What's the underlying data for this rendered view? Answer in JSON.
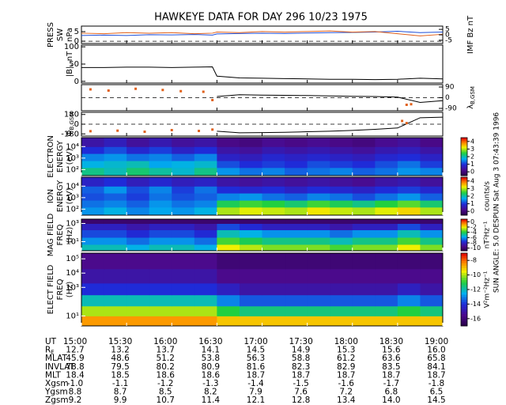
{
  "title": "HAWKEYE DATA FOR DAY 296 10/23 1975",
  "side_note": "SUN ANGLE: 5.0 DESPUN Sat Aug  3 07:43:39 1996",
  "time_axis": {
    "label": "UT",
    "xlim": [
      15,
      19
    ],
    "xticks": [
      {
        "value": 15,
        "label": "15:00"
      },
      {
        "value": 15.5,
        "label": "15:30"
      },
      {
        "value": 16,
        "label": "16:00"
      },
      {
        "value": 16.5,
        "label": "16:30"
      },
      {
        "value": 17,
        "label": "17:00"
      },
      {
        "value": 17.5,
        "label": "17:30"
      },
      {
        "value": 18,
        "label": "18:00"
      },
      {
        "value": 18.5,
        "label": "18:30"
      },
      {
        "value": 19,
        "label": "19:00"
      }
    ]
  },
  "chart_data": [
    {
      "type": "line",
      "ylabel": [
        "PRESS",
        "SW",
        "nPa"
      ],
      "y2label": [
        "IMF Bz nT"
      ],
      "dashed_zero": true,
      "ylim": [
        -1.2,
        7.9
      ],
      "yticks": [
        0,
        5
      ],
      "y2lim": [
        -8,
        8
      ],
      "y2ticks": [
        -5,
        0,
        5
      ],
      "x": [
        15,
        15.25,
        15.5,
        15.75,
        16,
        16.25,
        16.45,
        16.5,
        16.75,
        17,
        17.25,
        17.5,
        17.75,
        18,
        18.25,
        18.5,
        18.75,
        19
      ],
      "series": [
        {
          "color": "#1f4fd8",
          "values": [
            3.0,
            3.2,
            3.0,
            3.4,
            3.3,
            3.5,
            3.2,
            3.8,
            4.0,
            4.2,
            4.0,
            4.3,
            4.5,
            4.6,
            4.8,
            5.2,
            4.5,
            4.8
          ]
        },
        {
          "color": "#e0601a",
          "axis": "y2",
          "values": [
            1.5,
            1.0,
            2.0,
            1.5,
            2.0,
            1.0,
            1.5,
            2.5,
            2.0,
            3.0,
            2.5,
            3.0,
            3.5,
            2.5,
            3.0,
            1.0,
            -1.0,
            0.5
          ]
        }
      ]
    },
    {
      "type": "line",
      "ylabel": [
        "|B|, nT"
      ],
      "ylim": [
        -5,
        105
      ],
      "yticks": [
        0,
        50,
        100
      ],
      "x": [
        15,
        15.25,
        15.5,
        15.75,
        16,
        16.25,
        16.45,
        16.5,
        16.75,
        17,
        17.25,
        17.5,
        17.75,
        18,
        18.25,
        18.5,
        18.75,
        19
      ],
      "series": [
        {
          "color": "#000000",
          "values": [
            40,
            40,
            41,
            41,
            40,
            41,
            42,
            15,
            10,
            9,
            8,
            7,
            6,
            6,
            5,
            6,
            9,
            7
          ]
        }
      ]
    },
    {
      "type": "line",
      "y2label": [
        {
          "main": "λ",
          "sub": "B,GSM"
        }
      ],
      "dashed_zero": true,
      "ylim": [
        -110,
        110
      ],
      "y2lim": [
        -110,
        110
      ],
      "y2ticks": [
        -90,
        0,
        90
      ],
      "x": [
        15,
        15.25,
        15.5,
        15.75,
        16,
        16.25,
        16.45,
        16.5,
        16.75,
        17,
        17.25,
        17.5,
        17.75,
        18,
        18.25,
        18.5,
        18.75,
        19
      ],
      "series": [
        {
          "color": "#000000",
          "axis": "y2",
          "values": [
            null,
            null,
            null,
            null,
            null,
            null,
            null,
            10,
            25,
            22,
            20,
            18,
            15,
            12,
            10,
            5,
            -40,
            -25
          ]
        }
      ],
      "points": [
        {
          "color": "#e0601a",
          "x": [
            15.1,
            15.3,
            15.6,
            15.9,
            16.1,
            16.35,
            16.45,
            18.6,
            18.65
          ],
          "values": [
            70,
            60,
            75,
            65,
            55,
            50,
            -20,
            -60,
            -55
          ]
        }
      ]
    },
    {
      "type": "line",
      "ylabel": [
        {
          "main": "Φ",
          "sub": "B,GSM"
        }
      ],
      "dashed_zero": true,
      "ylim": [
        -220,
        220
      ],
      "yticks": [
        -180,
        0,
        180
      ],
      "x": [
        15,
        15.25,
        15.5,
        15.75,
        16,
        16.25,
        16.45,
        16.5,
        16.75,
        17,
        17.25,
        17.5,
        17.75,
        18,
        18.25,
        18.5,
        18.75,
        19
      ],
      "series": [
        {
          "color": "#000000",
          "values": [
            null,
            null,
            null,
            null,
            null,
            null,
            null,
            -130,
            -160,
            -155,
            -150,
            -140,
            -130,
            -115,
            -95,
            -70,
            120,
            130
          ]
        }
      ],
      "points": [
        {
          "color": "#e0601a",
          "x": [
            15.1,
            15.4,
            15.7,
            16.0,
            16.3,
            16.45,
            18.55,
            18.6
          ],
          "values": [
            -130,
            -120,
            -140,
            -110,
            -125,
            -100,
            60,
            20
          ]
        }
      ]
    },
    {
      "type": "heatmap",
      "ylabel": [
        "ELECTRON",
        "ENERGY",
        "(eV)"
      ],
      "log": true,
      "ylim": [
        30,
        60000
      ],
      "yticks": [
        {
          "value": 100,
          "label": "10²"
        },
        {
          "value": 1000,
          "label": "10³"
        },
        {
          "value": 10000,
          "label": "10⁴"
        }
      ],
      "x_bins": [
        15,
        15.25,
        15.5,
        15.75,
        16,
        16.25,
        16.5,
        16.75,
        17,
        17.25,
        17.5,
        17.75,
        18,
        18.25,
        18.5,
        18.75,
        19
      ],
      "y_bins": [
        30,
        150,
        600,
        2500,
        10000,
        60000
      ],
      "z": [
        [
          2.2,
          2.0,
          2.3,
          2.1,
          1.9,
          2.2,
          1.6,
          1.4,
          1.5,
          1.3,
          1.4,
          1.5,
          1.3,
          1.4,
          1.6,
          1.5
        ],
        [
          1.8,
          1.9,
          2.0,
          1.7,
          1.8,
          1.9,
          1.2,
          1.0,
          1.1,
          1.0,
          1.2,
          1.1,
          1.0,
          1.2,
          1.4,
          1.1
        ],
        [
          1.5,
          1.6,
          1.4,
          1.5,
          1.3,
          1.5,
          0.8,
          0.7,
          0.9,
          0.8,
          0.9,
          0.8,
          0.7,
          0.9,
          1.0,
          0.8
        ],
        [
          1.0,
          1.2,
          0.9,
          1.1,
          0.8,
          1.0,
          0.5,
          0.4,
          0.6,
          0.5,
          0.6,
          0.5,
          0.4,
          0.6,
          0.7,
          0.5
        ],
        [
          0.5,
          0.7,
          0.4,
          0.6,
          0.4,
          0.5,
          0.2,
          0.1,
          0.3,
          0.2,
          0.3,
          0.2,
          0.1,
          0.3,
          0.4,
          0.2
        ]
      ],
      "zlim": [
        -0.5,
        4.5
      ],
      "zticks": [
        0,
        1,
        2,
        3,
        4
      ]
    },
    {
      "type": "heatmap",
      "ylabel": [
        "ION",
        "ENERGY",
        "(eV)"
      ],
      "log": true,
      "colorbar_label": "counts/s",
      "ylim": [
        30,
        60000
      ],
      "yticks": [
        {
          "value": 100,
          "label": "10²"
        },
        {
          "value": 1000,
          "label": "10³"
        },
        {
          "value": 10000,
          "label": "10⁴"
        }
      ],
      "x_bins": [
        15,
        15.25,
        15.5,
        15.75,
        16,
        16.25,
        16.5,
        16.75,
        17,
        17.25,
        17.5,
        17.75,
        18,
        18.25,
        18.5,
        18.75,
        19
      ],
      "y_bins": [
        30,
        150,
        600,
        2500,
        10000,
        60000
      ],
      "z": [
        [
          1.6,
          1.8,
          1.5,
          1.7,
          1.6,
          1.8,
          3.0,
          3.2,
          3.1,
          3.0,
          3.3,
          3.1,
          3.0,
          3.2,
          3.4,
          3.0
        ],
        [
          1.4,
          1.5,
          1.3,
          1.6,
          1.4,
          1.5,
          2.4,
          2.6,
          2.5,
          2.3,
          2.6,
          2.4,
          2.2,
          2.5,
          2.7,
          2.3
        ],
        [
          1.2,
          1.3,
          1.1,
          1.4,
          1.2,
          1.3,
          1.5,
          1.6,
          1.4,
          1.3,
          1.5,
          1.4,
          1.2,
          1.4,
          1.6,
          1.3
        ],
        [
          1.3,
          1.6,
          1.2,
          1.5,
          1.1,
          1.4,
          1.0,
          0.9,
          1.0,
          0.8,
          1.0,
          0.9,
          0.8,
          1.0,
          1.1,
          0.9
        ],
        [
          0.8,
          1.0,
          0.7,
          0.9,
          0.7,
          0.8,
          0.5,
          0.4,
          0.5,
          0.4,
          0.5,
          0.4,
          0.3,
          0.5,
          0.6,
          0.4
        ]
      ],
      "zlim": [
        -0.5,
        4.5
      ],
      "zticks": [
        0,
        1,
        2,
        3,
        4
      ]
    },
    {
      "type": "heatmap",
      "ylabel": [
        "MAG FIELD",
        "FREQ",
        "(Hz)"
      ],
      "log": true,
      "colorbar_label": "nT²Hz⁻¹",
      "ylim": [
        1,
        3000
      ],
      "yticks": [
        {
          "value": 10,
          "label": "10¹"
        },
        {
          "value": 1000,
          "label": "10³"
        }
      ],
      "x_bins": [
        15,
        15.25,
        15.5,
        15.75,
        16,
        16.25,
        16.5,
        16.75,
        17,
        17.25,
        17.5,
        17.75,
        18,
        18.25,
        18.5,
        18.75,
        19
      ],
      "y_bins": [
        1,
        5,
        30,
        200,
        1000,
        3000
      ],
      "z": [
        [
          -5,
          -5,
          -5.5,
          -5,
          -5,
          -5.5,
          -2,
          -2.5,
          -3,
          -3,
          -3,
          -3.5,
          -3,
          -3,
          -2,
          -3
        ],
        [
          -6,
          -6,
          -6.5,
          -6,
          -6,
          -6.5,
          -3.5,
          -4,
          -4.5,
          -4.5,
          -4.5,
          -5,
          -4.5,
          -4.5,
          -3.5,
          -4.5
        ],
        [
          -7,
          -7,
          -7.5,
          -7,
          -7,
          -7.5,
          -5,
          -5.5,
          -6,
          -6,
          -6,
          -6.5,
          -6,
          -6,
          -5,
          -6
        ],
        [
          -8,
          -8,
          -8.5,
          -8,
          -8,
          -8.5,
          -7,
          -7.5,
          -8,
          -8,
          -8,
          -8.5,
          -8,
          -8,
          -7,
          -8
        ],
        [
          -10,
          -10,
          -10,
          -10,
          -10,
          -10,
          -10,
          -10,
          -10,
          -10,
          -10,
          -10,
          -10,
          -10,
          -10,
          -10
        ]
      ],
      "zlim": [
        -11,
        1
      ],
      "zticks": [
        0,
        -2,
        -4,
        -6,
        -8,
        -10
      ]
    },
    {
      "type": "heatmap",
      "ylabel": [
        "ELECT FIELD",
        "FREQ",
        "(Hz)"
      ],
      "log": true,
      "colorbar_label": "V²m⁻²Hz⁻¹",
      "ylim": [
        2,
        250000
      ],
      "yticks": [
        {
          "value": 10,
          "label": "10¹"
        },
        {
          "value": 1000,
          "label": "10³"
        },
        {
          "value": 10000,
          "label": "10⁴"
        },
        {
          "value": 100000,
          "label": "10⁵"
        }
      ],
      "x_bins": [
        15,
        15.25,
        15.5,
        15.75,
        16,
        16.25,
        16.5,
        16.75,
        17,
        17.25,
        17.5,
        17.75,
        18,
        18.25,
        18.5,
        18.75,
        19
      ],
      "y_bins": [
        2,
        10,
        50,
        300,
        2000,
        20000,
        250000
      ],
      "z": [
        [
          -8.5,
          -8.5,
          -8.5,
          -8.5,
          -8.5,
          -8.5,
          -9,
          -9,
          -9,
          -9,
          -9,
          -9,
          -9,
          -9,
          -9,
          -9
        ],
        [
          -10,
          -10,
          -10,
          -10,
          -10,
          -10,
          -11,
          -11.5,
          -11.5,
          -11.5,
          -11.5,
          -11.5,
          -11.5,
          -11.5,
          -11,
          -11.5
        ],
        [
          -12,
          -12,
          -12,
          -12,
          -12,
          -12,
          -13,
          -13.5,
          -13.5,
          -13.5,
          -13.5,
          -13.5,
          -13.5,
          -13.5,
          -13,
          -13.5
        ],
        [
          -14,
          -14,
          -14,
          -14,
          -14,
          -14,
          -14.5,
          -15,
          -15,
          -15,
          -15,
          -15,
          -15,
          -15,
          -14.5,
          -15
        ],
        [
          -15,
          -15,
          -15,
          -15,
          -15,
          -15,
          -15.5,
          -15.5,
          -15.5,
          -15.5,
          -15.5,
          -15.5,
          -15.5,
          -15.5,
          -15.5,
          -15.5
        ],
        [
          -15.5,
          -15.5,
          -15.5,
          -15.5,
          -15.5,
          -15.5,
          -16,
          -16,
          -16,
          -16,
          -16,
          -16,
          -16,
          -16,
          -16,
          -16
        ]
      ],
      "zlim": [
        -17,
        -7
      ],
      "zticks": [
        -8,
        -10,
        -12,
        -14,
        -16
      ]
    }
  ],
  "ephemeris": {
    "rows": [
      {
        "label": "R",
        "sub": "E",
        "values": [
          "12.7",
          "13.2",
          "13.7",
          "14.1",
          "14.5",
          "14.9",
          "15.3",
          "15.6",
          "16.0"
        ]
      },
      {
        "label": "MLAT",
        "values": [
          "45.9",
          "48.6",
          "51.2",
          "53.8",
          "56.3",
          "58.8",
          "61.2",
          "63.6",
          "65.8"
        ]
      },
      {
        "label": "INVLAT",
        "values": [
          "78.8",
          "79.5",
          "80.2",
          "80.9",
          "81.6",
          "82.3",
          "82.9",
          "83.5",
          "84.1"
        ]
      },
      {
        "label": "MLT",
        "values": [
          "18.4",
          "18.5",
          "18.6",
          "18.6",
          "18.7",
          "18.7",
          "18.7",
          "18.7",
          "18.7"
        ]
      },
      {
        "label": "Xgsm",
        "values": [
          "-1.0",
          "-1.1",
          "-1.2",
          "-1.3",
          "-1.4",
          "-1.5",
          "-1.6",
          "-1.7",
          "-1.8"
        ]
      },
      {
        "label": "Ygsm",
        "values": [
          "8.8",
          "8.7",
          "8.5",
          "8.2",
          "7.9",
          "7.6",
          "7.2",
          "6.8",
          "6.5"
        ]
      },
      {
        "label": "Zgsm",
        "values": [
          "9.2",
          "9.9",
          "10.7",
          "11.4",
          "12.1",
          "12.8",
          "13.4",
          "14.0",
          "14.5"
        ]
      }
    ]
  }
}
